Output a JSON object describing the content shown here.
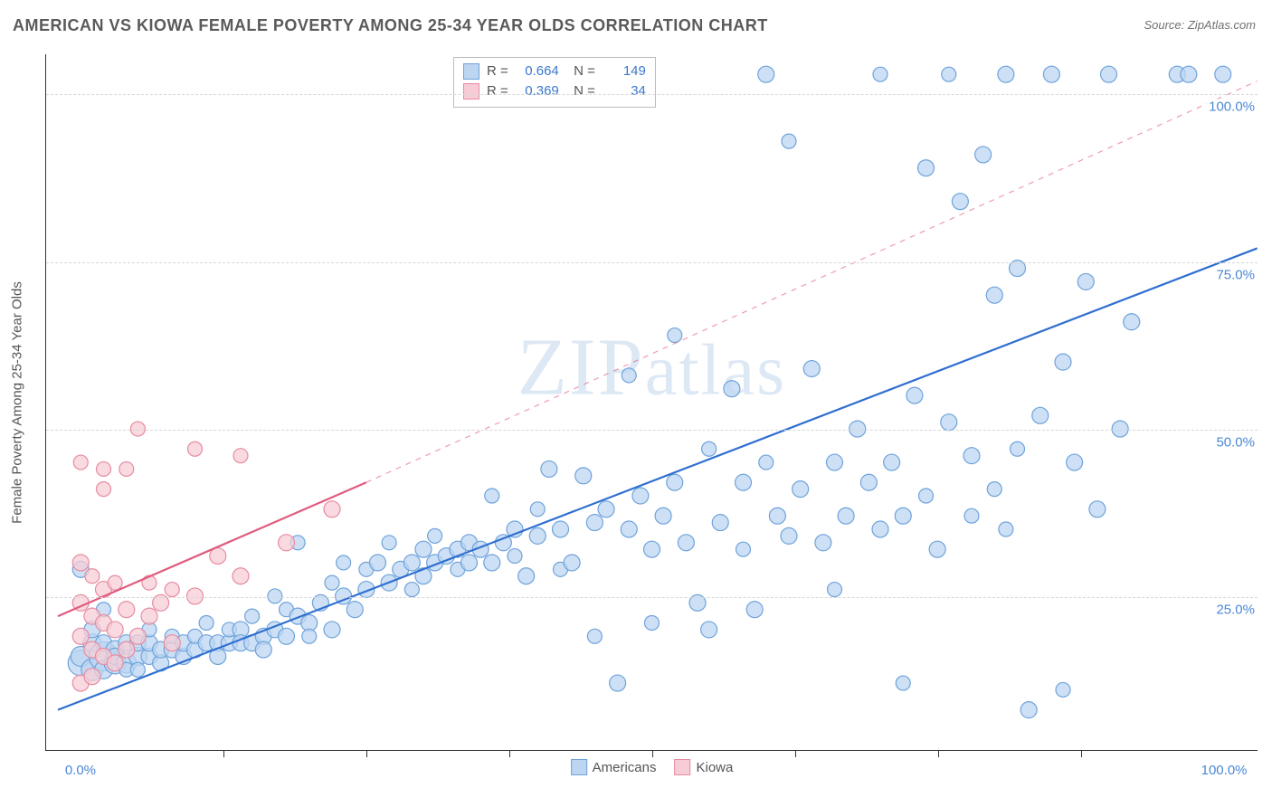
{
  "title": "AMERICAN VS KIOWA FEMALE POVERTY AMONG 25-34 YEAR OLDS CORRELATION CHART",
  "source_label": "Source: ZipAtlas.com",
  "watermark": "ZIPatlas",
  "y_axis_label": "Female Poverty Among 25-34 Year Olds",
  "chart": {
    "type": "scatter",
    "xlim": [
      -3,
      103
    ],
    "ylim": [
      2,
      106
    ],
    "x_ticks_major_labels": [
      {
        "x": 0,
        "label": "0.0%"
      },
      {
        "x": 100,
        "label": "100.0%"
      }
    ],
    "x_ticks_minor": [
      12.5,
      25,
      37.5,
      50,
      62.5,
      75,
      87.5
    ],
    "y_ticks": [
      {
        "y": 25,
        "label": "25.0%"
      },
      {
        "y": 50,
        "label": "50.0%"
      },
      {
        "y": 75,
        "label": "75.0%"
      },
      {
        "y": 100,
        "label": "100.0%"
      }
    ],
    "grid_color": "#d7d7d7",
    "background_color": "#ffffff",
    "tick_label_color": "#4a88d6",
    "axis_label_color": "#555555"
  },
  "series": [
    {
      "name": "Americans",
      "marker_fill": "#bcd6f2",
      "marker_stroke": "#6fa3db",
      "marker_opacity": 0.75,
      "marker_r_default": 9,
      "trend_color": "#2f6fd0",
      "trend_width": 2.2,
      "trend_style": "solid",
      "trend_from": [
        -2,
        8
      ],
      "trend_to": [
        103,
        77
      ],
      "R": "0.664",
      "N": "149",
      "points": [
        [
          0,
          15,
          14
        ],
        [
          0,
          16,
          11
        ],
        [
          0,
          29,
          9
        ],
        [
          1,
          14,
          12
        ],
        [
          1,
          18,
          10
        ],
        [
          1,
          20,
          9
        ],
        [
          2,
          16,
          16
        ],
        [
          2,
          14,
          10
        ],
        [
          2,
          18,
          9
        ],
        [
          2,
          23,
          8
        ],
        [
          3,
          15,
          12
        ],
        [
          3,
          17,
          10
        ],
        [
          3,
          16,
          9
        ],
        [
          4,
          15,
          11
        ],
        [
          4,
          18,
          9
        ],
        [
          4,
          14,
          8
        ],
        [
          5,
          16,
          10
        ],
        [
          5,
          18,
          9
        ],
        [
          5,
          14,
          8
        ],
        [
          6,
          16,
          9
        ],
        [
          6,
          18,
          9
        ],
        [
          6,
          20,
          8
        ],
        [
          7,
          15,
          9
        ],
        [
          7,
          17,
          9
        ],
        [
          8,
          17,
          9
        ],
        [
          8,
          19,
          8
        ],
        [
          9,
          16,
          9
        ],
        [
          9,
          18,
          9
        ],
        [
          10,
          17,
          9
        ],
        [
          10,
          19,
          8
        ],
        [
          11,
          18,
          9
        ],
        [
          11,
          21,
          8
        ],
        [
          12,
          18,
          9
        ],
        [
          12,
          16,
          9
        ],
        [
          13,
          18,
          9
        ],
        [
          13,
          20,
          8
        ],
        [
          14,
          20,
          9
        ],
        [
          14,
          18,
          9
        ],
        [
          15,
          18,
          9
        ],
        [
          15,
          22,
          8
        ],
        [
          16,
          19,
          9
        ],
        [
          16,
          17,
          9
        ],
        [
          17,
          20,
          9
        ],
        [
          17,
          25,
          8
        ],
        [
          18,
          19,
          9
        ],
        [
          18,
          23,
          8
        ],
        [
          19,
          22,
          9
        ],
        [
          19,
          33,
          8
        ],
        [
          20,
          21,
          9
        ],
        [
          20,
          19,
          8
        ],
        [
          21,
          24,
          9
        ],
        [
          22,
          20,
          9
        ],
        [
          22,
          27,
          8
        ],
        [
          23,
          25,
          9
        ],
        [
          23,
          30,
          8
        ],
        [
          24,
          23,
          9
        ],
        [
          25,
          26,
          9
        ],
        [
          25,
          29,
          8
        ],
        [
          26,
          30,
          9
        ],
        [
          27,
          27,
          9
        ],
        [
          27,
          33,
          8
        ],
        [
          28,
          29,
          9
        ],
        [
          29,
          30,
          9
        ],
        [
          29,
          26,
          8
        ],
        [
          30,
          32,
          9
        ],
        [
          30,
          28,
          9
        ],
        [
          31,
          30,
          9
        ],
        [
          31,
          34,
          8
        ],
        [
          32,
          31,
          9
        ],
        [
          33,
          32,
          9
        ],
        [
          33,
          29,
          8
        ],
        [
          34,
          33,
          9
        ],
        [
          34,
          30,
          9
        ],
        [
          35,
          32,
          9
        ],
        [
          36,
          30,
          9
        ],
        [
          36,
          40,
          8
        ],
        [
          37,
          33,
          9
        ],
        [
          38,
          35,
          9
        ],
        [
          38,
          31,
          8
        ],
        [
          39,
          28,
          9
        ],
        [
          40,
          34,
          9
        ],
        [
          40,
          38,
          8
        ],
        [
          41,
          44,
          9
        ],
        [
          42,
          35,
          9
        ],
        [
          42,
          29,
          8
        ],
        [
          43,
          30,
          9
        ],
        [
          44,
          43,
          9
        ],
        [
          45,
          36,
          9
        ],
        [
          45,
          19,
          8
        ],
        [
          46,
          38,
          9
        ],
        [
          47,
          12,
          9
        ],
        [
          48,
          35,
          9
        ],
        [
          48,
          58,
          8
        ],
        [
          49,
          40,
          9
        ],
        [
          50,
          32,
          9
        ],
        [
          50,
          21,
          8
        ],
        [
          51,
          37,
          9
        ],
        [
          52,
          42,
          9
        ],
        [
          52,
          64,
          8
        ],
        [
          53,
          33,
          9
        ],
        [
          54,
          24,
          9
        ],
        [
          55,
          20,
          9
        ],
        [
          55,
          47,
          8
        ],
        [
          56,
          36,
          9
        ],
        [
          57,
          56,
          9
        ],
        [
          58,
          42,
          9
        ],
        [
          58,
          32,
          8
        ],
        [
          59,
          23,
          9
        ],
        [
          60,
          103,
          9
        ],
        [
          60,
          45,
          8
        ],
        [
          61,
          37,
          9
        ],
        [
          62,
          34,
          9
        ],
        [
          62,
          93,
          8
        ],
        [
          63,
          41,
          9
        ],
        [
          64,
          59,
          9
        ],
        [
          65,
          33,
          9
        ],
        [
          66,
          45,
          9
        ],
        [
          66,
          26,
          8
        ],
        [
          67,
          37,
          9
        ],
        [
          68,
          50,
          9
        ],
        [
          69,
          42,
          9
        ],
        [
          70,
          35,
          9
        ],
        [
          70,
          103,
          8
        ],
        [
          71,
          45,
          9
        ],
        [
          72,
          37,
          9
        ],
        [
          72,
          12,
          8
        ],
        [
          73,
          55,
          9
        ],
        [
          74,
          89,
          9
        ],
        [
          74,
          40,
          8
        ],
        [
          75,
          32,
          9
        ],
        [
          76,
          51,
          9
        ],
        [
          76,
          103,
          8
        ],
        [
          77,
          84,
          9
        ],
        [
          78,
          46,
          9
        ],
        [
          78,
          37,
          8
        ],
        [
          79,
          91,
          9
        ],
        [
          80,
          70,
          9
        ],
        [
          80,
          41,
          8
        ],
        [
          81,
          103,
          9
        ],
        [
          81,
          35,
          8
        ],
        [
          82,
          74,
          9
        ],
        [
          82,
          47,
          8
        ],
        [
          83,
          8,
          9
        ],
        [
          84,
          52,
          9
        ],
        [
          85,
          103,
          9
        ],
        [
          86,
          60,
          9
        ],
        [
          86,
          11,
          8
        ],
        [
          87,
          45,
          9
        ],
        [
          88,
          72,
          9
        ],
        [
          89,
          38,
          9
        ],
        [
          90,
          103,
          9
        ],
        [
          91,
          50,
          9
        ],
        [
          92,
          66,
          9
        ],
        [
          96,
          103,
          9
        ],
        [
          97,
          103,
          9
        ],
        [
          100,
          103,
          9
        ]
      ]
    },
    {
      "name": "Kiowa",
      "marker_fill": "#f6cdd6",
      "marker_stroke": "#e88ba1",
      "marker_opacity": 0.75,
      "marker_r_default": 9,
      "trend_color": "#e15b7e",
      "trend_width": 2.2,
      "trend_style": "solid",
      "trend_from": [
        -2,
        22
      ],
      "trend_to": [
        25,
        42
      ],
      "trend_dashed_to": [
        103,
        102
      ],
      "R": "0.369",
      "N": "34",
      "points": [
        [
          0,
          12,
          9
        ],
        [
          0,
          19,
          9
        ],
        [
          0,
          24,
          9
        ],
        [
          0,
          30,
          9
        ],
        [
          0,
          45,
          8
        ],
        [
          1,
          13,
          9
        ],
        [
          1,
          17,
          9
        ],
        [
          1,
          22,
          9
        ],
        [
          1,
          28,
          8
        ],
        [
          2,
          16,
          9
        ],
        [
          2,
          21,
          9
        ],
        [
          2,
          26,
          9
        ],
        [
          2,
          41,
          8
        ],
        [
          2,
          44,
          8
        ],
        [
          3,
          15,
          9
        ],
        [
          3,
          20,
          9
        ],
        [
          3,
          27,
          8
        ],
        [
          4,
          17,
          9
        ],
        [
          4,
          23,
          9
        ],
        [
          4,
          44,
          8
        ],
        [
          5,
          19,
          9
        ],
        [
          5,
          50,
          8
        ],
        [
          6,
          22,
          9
        ],
        [
          6,
          27,
          8
        ],
        [
          7,
          24,
          9
        ],
        [
          8,
          18,
          9
        ],
        [
          8,
          26,
          8
        ],
        [
          10,
          25,
          9
        ],
        [
          10,
          47,
          8
        ],
        [
          12,
          31,
          9
        ],
        [
          14,
          28,
          9
        ],
        [
          14,
          46,
          8
        ],
        [
          18,
          33,
          9
        ],
        [
          22,
          38,
          9
        ]
      ]
    }
  ],
  "legend_bottom": [
    {
      "label": "Americans",
      "fill": "#bcd6f2",
      "stroke": "#6fa3db"
    },
    {
      "label": "Kiowa",
      "fill": "#f6cdd6",
      "stroke": "#e88ba1"
    }
  ]
}
